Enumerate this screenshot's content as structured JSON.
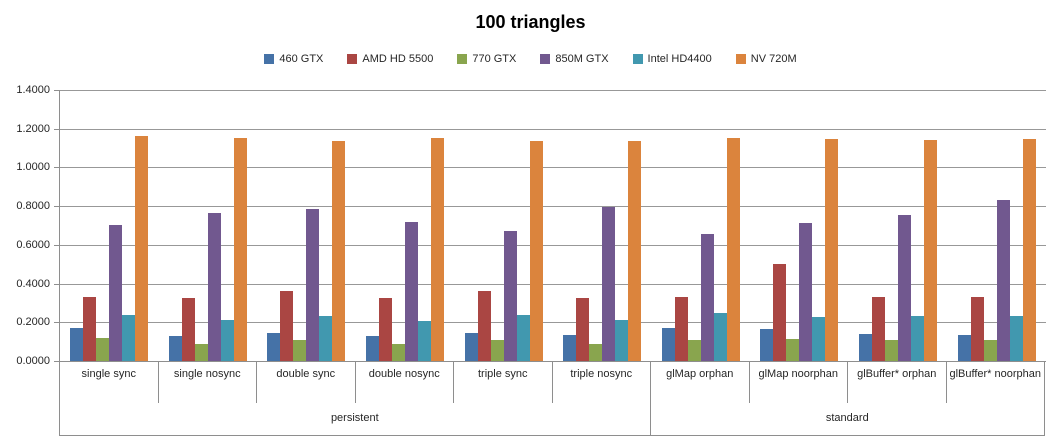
{
  "title": "100 triangles",
  "chart_data": {
    "type": "bar",
    "title": "100 triangles",
    "categories": [
      "single sync",
      "single nosync",
      "double sync",
      "double nosync",
      "triple sync",
      "triple nosync",
      "glMap orphan",
      "glMap noorphan",
      "glBuffer* orphan",
      "glBuffer* noorphan"
    ],
    "category_groups": [
      {
        "label": "persistent",
        "span": 6
      },
      {
        "label": "standard",
        "span": 4
      }
    ],
    "series": [
      {
        "name": "460 GTX",
        "color": "#4572A7",
        "values": [
          0.17,
          0.13,
          0.145,
          0.13,
          0.145,
          0.135,
          0.17,
          0.165,
          0.14,
          0.135
        ]
      },
      {
        "name": "AMD HD 5500",
        "color": "#AA4643",
        "values": [
          0.33,
          0.325,
          0.36,
          0.325,
          0.36,
          0.325,
          0.33,
          0.5,
          0.33,
          0.33
        ]
      },
      {
        "name": "770 GTX",
        "color": "#89A54E",
        "values": [
          0.12,
          0.09,
          0.11,
          0.09,
          0.11,
          0.09,
          0.11,
          0.115,
          0.11,
          0.11
        ]
      },
      {
        "name": "850M GTX",
        "color": "#71588F",
        "values": [
          0.7,
          0.765,
          0.785,
          0.72,
          0.67,
          0.795,
          0.655,
          0.715,
          0.755,
          0.83
        ]
      },
      {
        "name": "Intel HD4400",
        "color": "#4198AF",
        "values": [
          0.24,
          0.21,
          0.235,
          0.205,
          0.24,
          0.21,
          0.25,
          0.225,
          0.235,
          0.23
        ]
      },
      {
        "name": "NV 720M",
        "color": "#DB843D",
        "values": [
          1.16,
          1.15,
          1.135,
          1.15,
          1.135,
          1.135,
          1.15,
          1.145,
          1.14,
          1.145
        ]
      }
    ],
    "ylim": [
      0,
      1.4
    ],
    "ytick_labels": [
      "0.0000",
      "0.2000",
      "0.4000",
      "0.6000",
      "0.8000",
      "1.0000",
      "1.2000",
      "1.4000"
    ],
    "grid": true,
    "legend_position": "top"
  }
}
